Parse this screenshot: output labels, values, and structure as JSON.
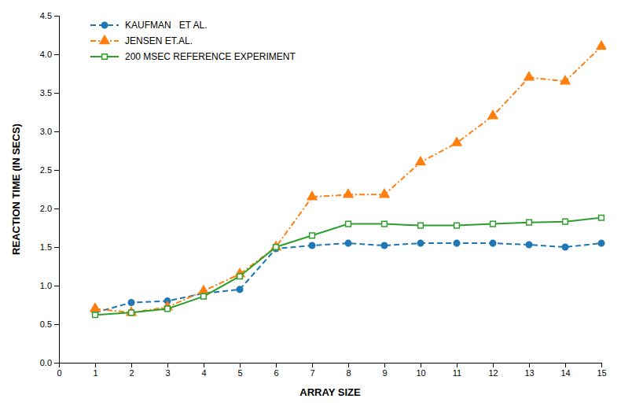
{
  "chart_data": {
    "type": "line",
    "xlabel": "ARRAY SIZE",
    "ylabel": "REACTION TIME (IN SECS)",
    "x": [
      1,
      2,
      3,
      4,
      5,
      6,
      7,
      8,
      9,
      10,
      11,
      12,
      13,
      14,
      15
    ],
    "series": [
      {
        "name": "KAUFMAN   ET AL.",
        "marker": "circle",
        "line_style": "dashed",
        "values": [
          0.65,
          0.78,
          0.8,
          0.9,
          0.95,
          1.48,
          1.52,
          1.55,
          1.52,
          1.55,
          1.55,
          1.55,
          1.53,
          1.5,
          1.55
        ]
      },
      {
        "name": "JENSEN ET.AL.",
        "marker": "triangle",
        "line_style": "dashdot",
        "values": [
          0.7,
          0.65,
          0.72,
          0.93,
          1.15,
          1.5,
          2.15,
          2.18,
          2.18,
          2.6,
          2.85,
          3.2,
          3.7,
          3.65,
          4.1
        ]
      },
      {
        "name": "200 MSEC REFERENCE EXPERIMENT",
        "marker": "square",
        "line_style": "solid",
        "values": [
          0.62,
          0.65,
          0.7,
          0.86,
          1.12,
          1.5,
          1.65,
          1.8,
          1.8,
          1.78,
          1.78,
          1.8,
          1.82,
          1.83,
          1.88
        ]
      }
    ],
    "xlim": [
      0,
      15
    ],
    "ylim": [
      0.0,
      4.5
    ],
    "xticks": [
      0,
      1,
      2,
      3,
      4,
      5,
      6,
      7,
      8,
      9,
      10,
      11,
      12,
      13,
      14,
      15
    ],
    "yticks": [
      {
        "value": 0.0,
        "label": "0.0"
      },
      0.5,
      {
        "value": 1.0,
        "label": "1.0"
      },
      1.5,
      {
        "value": 2.0,
        "label": "2.0"
      },
      2.5,
      {
        "value": 3.0,
        "label": "3.0"
      },
      3.5,
      {
        "value": 4.0,
        "label": "4.0"
      },
      4.5
    ],
    "legend": "upper left",
    "grid": false
  }
}
